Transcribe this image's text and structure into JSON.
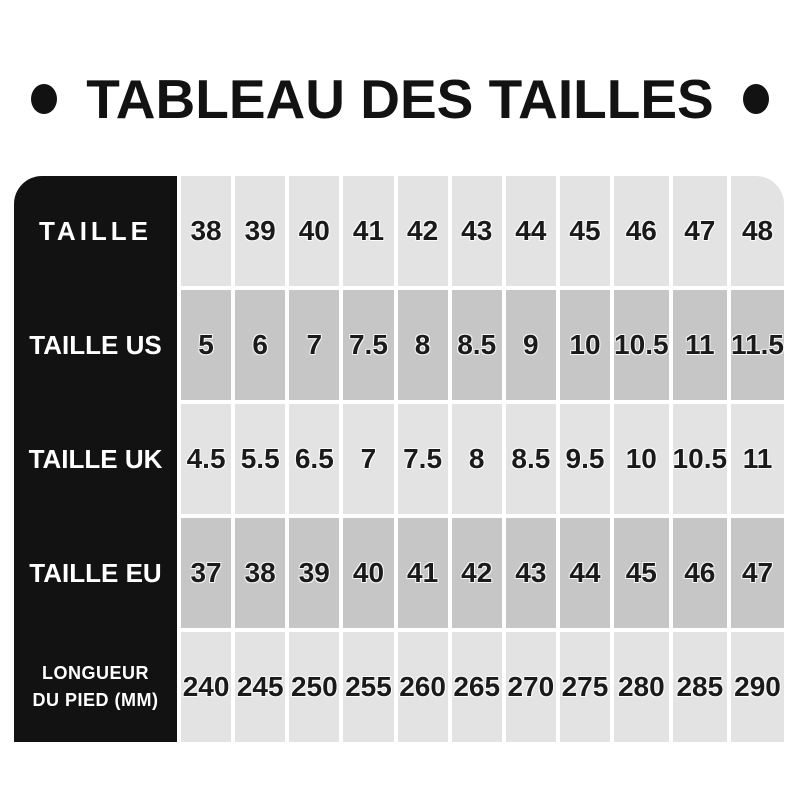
{
  "title": {
    "text": "TABLEAU DES TAILLES"
  },
  "icons": {
    "left": "bullet-dot",
    "right": "bullet-dot"
  },
  "colors": {
    "page_bg": "#ffffff",
    "header_bg": "#121212",
    "header_text": "#ffffff",
    "row_light": "#e3e3e3",
    "row_dark": "#c6c6c6",
    "value_text": "#1a1a1a",
    "title_text": "#121212"
  },
  "chart_data": {
    "type": "table",
    "title": "TABLEAU DES TAILLES",
    "row_headers": [
      "TAILLE",
      "TAILLE US",
      "TAILLE UK",
      "TAILLE EU",
      "LONGUEUR DU PIED (MM)"
    ],
    "rows": [
      {
        "label": "TAILLE",
        "values": [
          "38",
          "39",
          "40",
          "41",
          "42",
          "43",
          "44",
          "45",
          "46",
          "47",
          "48"
        ]
      },
      {
        "label": "TAILLE US",
        "values": [
          "5",
          "6",
          "7",
          "7.5",
          "8",
          "8.5",
          "9",
          "10",
          "10.5",
          "11",
          "11.5"
        ]
      },
      {
        "label": "TAILLE UK",
        "values": [
          "4.5",
          "5.5",
          "6.5",
          "7",
          "7.5",
          "8",
          "8.5",
          "9.5",
          "10",
          "10.5",
          "11"
        ]
      },
      {
        "label": "TAILLE EU",
        "values": [
          "37",
          "38",
          "39",
          "40",
          "41",
          "42",
          "43",
          "44",
          "45",
          "46",
          "47"
        ]
      },
      {
        "label": "LONGUEUR DU PIED (MM)",
        "values": [
          "240",
          "245",
          "250",
          "255",
          "260",
          "265",
          "270",
          "275",
          "280",
          "285",
          "290"
        ]
      }
    ]
  }
}
